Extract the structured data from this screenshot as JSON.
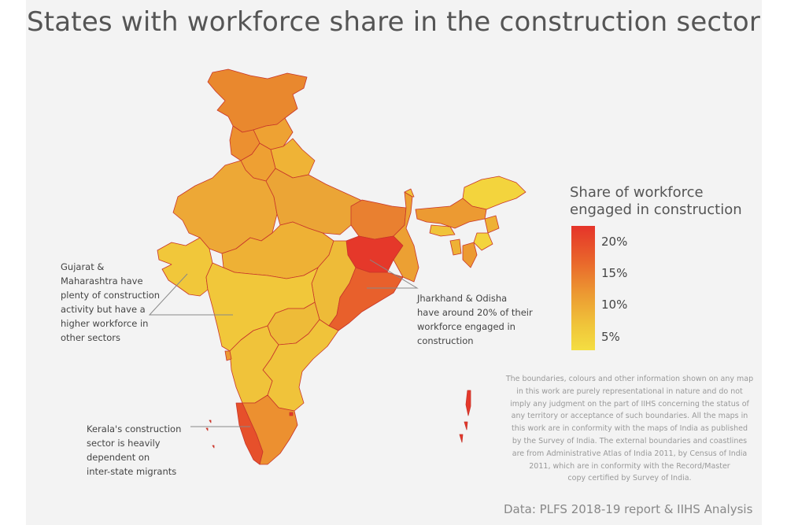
{
  "title": "States with workforce share in the construction sector",
  "legend": {
    "title_line1": "Share of workforce",
    "title_line2": "engaged in construction",
    "ticks": [
      "20%",
      "15%",
      "10%",
      "5%"
    ],
    "colors": {
      "high": "#e5342a",
      "mid": "#ec9a32",
      "low": "#f4de42"
    }
  },
  "annotations": {
    "gujarat": [
      "Gujarat &",
      "Maharashtra have",
      "plenty of construction",
      "activity but have a",
      "higher workforce in",
      "other sectors"
    ],
    "jharkhand": [
      "Jharkhand & Odisha",
      "have around 20% of their",
      "workforce engaged in",
      "construction"
    ],
    "kerala": [
      "Kerala's construction",
      "sector is heavily",
      "dependent on",
      "inter-state migrants"
    ]
  },
  "disclaimer": [
    "The boundaries, colours and other information shown on any map",
    "in this work are purely representational in nature and do not",
    "imply any judgment on the part of IIHS concerning the status of",
    "any territory or acceptance of such boundaries. All the maps in",
    "this work are in conformity with the maps of India as published",
    "by the Survey of India. The external boundaries and coastlines",
    "are from Administrative Atlas of India 2011, by Census of India",
    "2011, which are in conformity with the Record/Master",
    "copy certified by Survey of India."
  ],
  "source": "Data: PLFS 2018-19 report & IIHS Analysis"
}
